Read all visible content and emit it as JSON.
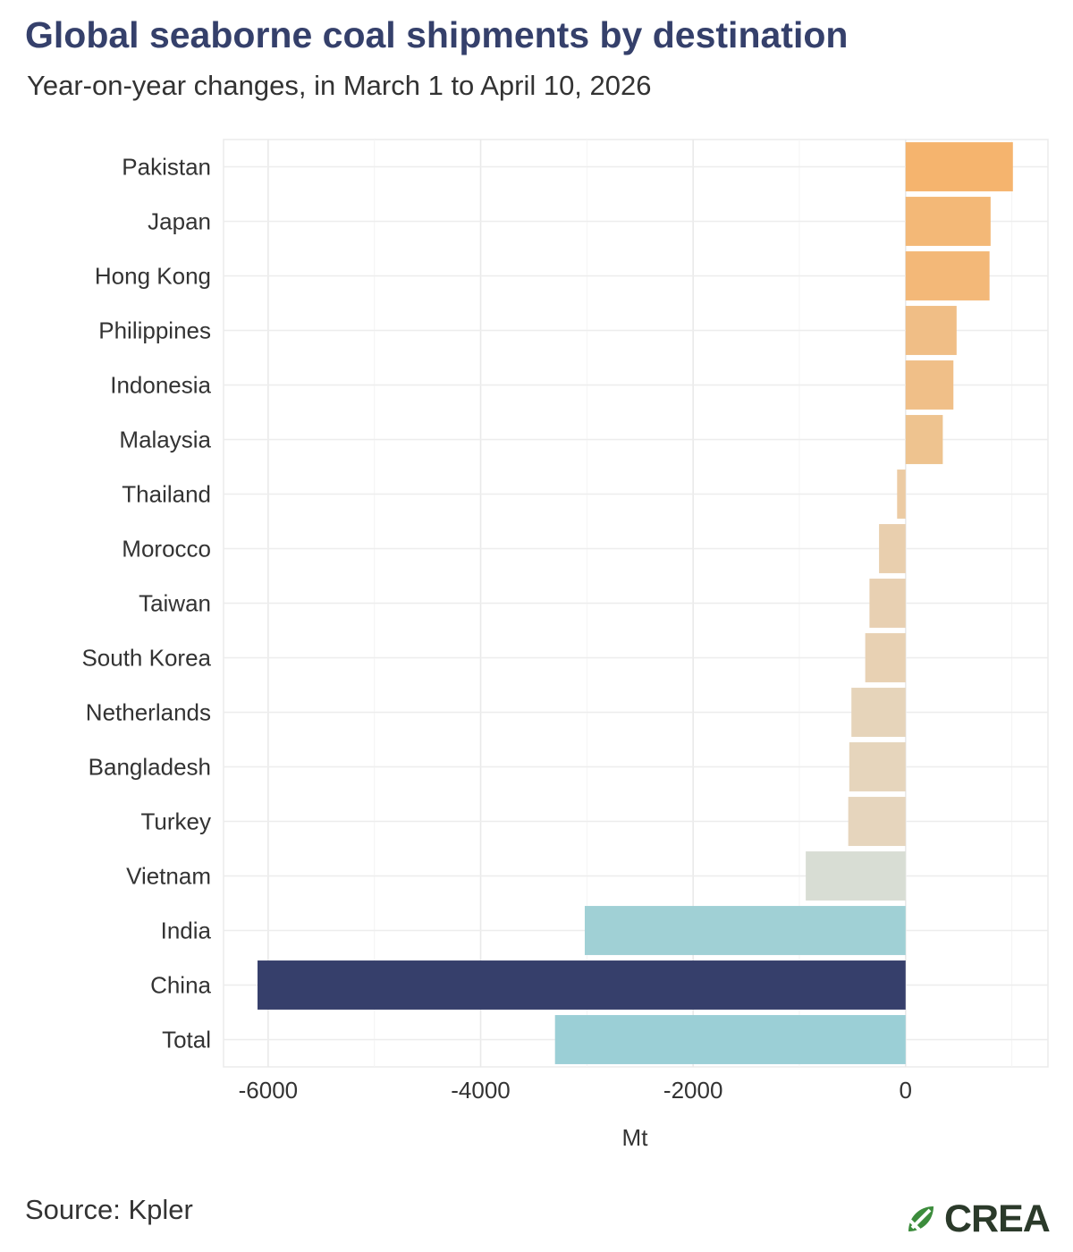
{
  "title": "Global seaborne coal shipments by destination",
  "subtitle": "Year-on-year changes, in March 1 to April 10, 2026",
  "source": "Source: Kpler",
  "logo_text": "CREA",
  "chart_data": {
    "type": "bar",
    "orientation": "horizontal",
    "title": "Global seaborne coal shipments by destination",
    "subtitle": "Year-on-year changes, in March 1 to April 10, 2026",
    "xlabel": "Mt",
    "ylabel": "",
    "xlim": [
      -6420,
      1340
    ],
    "xticks": [
      -6000,
      -4000,
      -2000,
      0
    ],
    "xtick_labels": [
      "-6000",
      "-4000",
      "-2000",
      "0"
    ],
    "grid": true,
    "legend": "none",
    "categories": [
      "Pakistan",
      "Japan",
      "Hong Kong",
      "Philippines",
      "Indonesia",
      "Malaysia",
      "Thailand",
      "Morocco",
      "Taiwan",
      "South Korea",
      "Netherlands",
      "Bangladesh",
      "Turkey",
      "Vietnam",
      "India",
      "China",
      "Total"
    ],
    "values": [
      1010,
      800,
      790,
      480,
      450,
      350,
      -80,
      -250,
      -340,
      -380,
      -510,
      -530,
      -540,
      -940,
      -3020,
      -6100,
      -3300
    ],
    "colors": [
      "#f5b46e",
      "#f3b877",
      "#f3b878",
      "#f0be86",
      "#f0bf88",
      "#eec38f",
      "#eccba3",
      "#e9cfae",
      "#e8d0b2",
      "#e8d1b3",
      "#e6d4ba",
      "#e6d5bc",
      "#e6d5bd",
      "#d8ddd4",
      "#a0d0d5",
      "#363f6b",
      "#9bcfd6"
    ]
  }
}
